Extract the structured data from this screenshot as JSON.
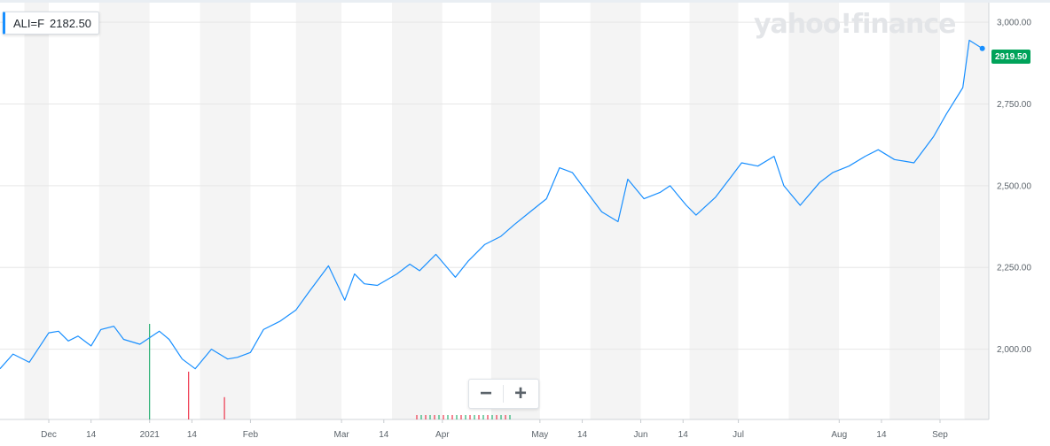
{
  "tooltip": {
    "symbol": "ALI=F",
    "price": "2182.50"
  },
  "watermark": "yahoo!finance",
  "last_price_label": "2919.50",
  "zoom": {
    "minus_label": "−",
    "plus_label": "+"
  },
  "colors": {
    "line": "#188fff",
    "last_badge": "#00a35a",
    "band": "#f4f4f4",
    "grid": "#e6e6e6",
    "vol_up": "#00a35a",
    "vol_down": "#eb0f29"
  },
  "chart_data": {
    "type": "line",
    "series": [
      {
        "x": [
          "2020-11-16",
          "2020-11-20",
          "2020-11-25",
          "2020-12-01",
          "2020-12-04",
          "2020-12-07",
          "2020-12-10",
          "2020-12-14",
          "2020-12-17",
          "2020-12-21",
          "2020-12-24",
          "2020-12-29",
          "2021-01-04",
          "2021-01-07",
          "2021-01-11",
          "2021-01-15",
          "2021-01-20",
          "2021-01-25",
          "2021-01-28",
          "2021-02-01",
          "2021-02-05",
          "2021-02-10",
          "2021-02-15",
          "2021-02-19",
          "2021-02-25",
          "2021-03-02",
          "2021-03-05",
          "2021-03-08",
          "2021-03-12",
          "2021-03-18",
          "2021-03-22",
          "2021-03-25",
          "2021-03-30",
          "2021-04-05",
          "2021-04-09",
          "2021-04-14",
          "2021-04-19",
          "2021-04-23",
          "2021-04-28",
          "2021-05-03",
          "2021-05-07",
          "2021-05-11",
          "2021-05-14",
          "2021-05-20",
          "2021-05-25",
          "2021-05-28",
          "2021-06-02",
          "2021-06-07",
          "2021-06-10",
          "2021-06-15",
          "2021-06-18",
          "2021-06-24",
          "2021-06-29",
          "2021-07-02",
          "2021-07-07",
          "2021-07-12",
          "2021-07-15",
          "2021-07-20",
          "2021-07-26",
          "2021-07-30",
          "2021-08-04",
          "2021-08-09",
          "2021-08-13",
          "2021-08-18",
          "2021-08-24",
          "2021-08-30",
          "2021-09-03",
          "2021-09-08",
          "2021-09-10",
          "2021-09-14"
        ],
        "values": [
          1940,
          1985,
          1960,
          2050,
          2055,
          2025,
          2040,
          2010,
          2060,
          2070,
          2030,
          2015,
          2055,
          2030,
          1970,
          1940,
          2000,
          1970,
          1975,
          1990,
          2060,
          2085,
          2120,
          2175,
          2255,
          2150,
          2230,
          2200,
          2195,
          2230,
          2260,
          2240,
          2290,
          2220,
          2270,
          2320,
          2345,
          2380,
          2420,
          2460,
          2555,
          2540,
          2500,
          2420,
          2390,
          2520,
          2460,
          2480,
          2500,
          2440,
          2410,
          2465,
          2530,
          2570,
          2560,
          2590,
          2500,
          2440,
          2510,
          2540,
          2560,
          2590,
          2610,
          2580,
          2570,
          2650,
          2720,
          2800,
          2945,
          2920
        ]
      }
    ],
    "ylim": [
      1785,
      3060
    ],
    "yticks": [
      "2,000.00",
      "2,250.00",
      "2,500.00",
      "2,750.00",
      "3,000.00"
    ],
    "ytick_values": [
      2000,
      2250,
      2500,
      2750,
      3000
    ],
    "xticks": [
      "Dec",
      "14",
      "2021",
      "14",
      "Feb",
      "Mar",
      "14",
      "Apr",
      "May",
      "14",
      "Jun",
      "14",
      "Jul",
      "Aug",
      "14",
      "Sep"
    ],
    "xtick_dates": [
      "2020-12-01",
      "2020-12-14",
      "2021-01-01",
      "2021-01-14",
      "2021-02-01",
      "2021-03-01",
      "2021-03-14",
      "2021-04-01",
      "2021-05-01",
      "2021-05-14",
      "2021-06-01",
      "2021-06-14",
      "2021-07-01",
      "2021-08-01",
      "2021-08-14",
      "2021-09-01"
    ],
    "volume_bars": [
      {
        "date": "2021-01-01",
        "value": 60,
        "dir": "up"
      },
      {
        "date": "2021-01-13",
        "value": 30,
        "dir": "down"
      },
      {
        "date": "2021-01-24",
        "value": 14,
        "dir": "down"
      }
    ],
    "grid": true
  }
}
